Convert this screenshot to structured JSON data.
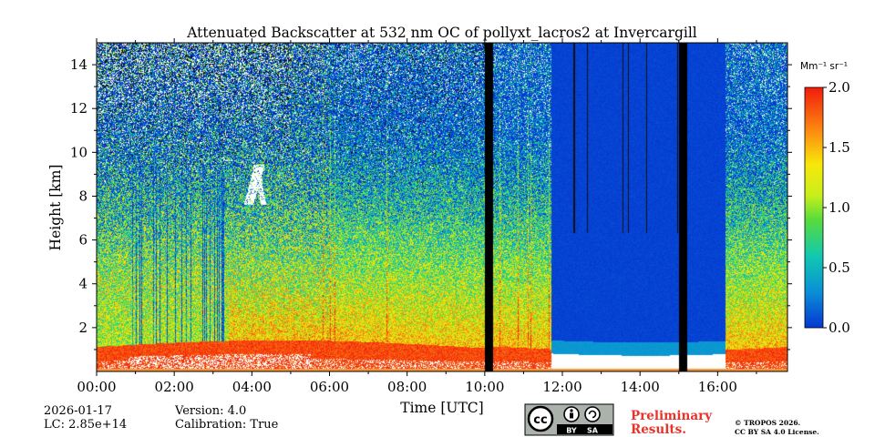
{
  "chart_data": {
    "type": "heatmap",
    "title": "Attenuated Backscatter at 532 nm OC of pollyxt_lacros2 at Invercargill",
    "xlabel": "Time [UTC]",
    "ylabel": "Height [km]",
    "xlim": [
      0,
      17.8
    ],
    "ylim": [
      0,
      15
    ],
    "x_ticks": [
      "00:00",
      "02:00",
      "04:00",
      "06:00",
      "08:00",
      "10:00",
      "12:00",
      "14:00",
      "16:00"
    ],
    "y_ticks": [
      "2",
      "4",
      "6",
      "8",
      "10",
      "12",
      "14"
    ],
    "colorbar": {
      "unit_label": "Mm⁻¹ sr⁻¹",
      "range": [
        0,
        2
      ],
      "ticks": [
        "0.0",
        "0.5",
        "1.0",
        "1.5",
        "2.0"
      ]
    },
    "data_gaps_hours": [
      [
        10.0,
        10.2
      ],
      [
        15.0,
        15.2
      ]
    ],
    "cloud_screened_hours": [
      11.7,
      16.2
    ],
    "cloud_patch": {
      "hours": [
        3.7,
        4.4
      ],
      "height_km": [
        7.6,
        9.4
      ]
    }
  },
  "footer": {
    "date": "2026-01-17",
    "lc": "LC: 2.85e+14",
    "version": "Version: 4.0",
    "calibration": "Calibration: True",
    "cc_badge": "cc",
    "by_label": "BY",
    "sa_label": "SA",
    "preliminary_line1": "Preliminary",
    "preliminary_line2": "Results.",
    "copyright_line1": "© TROPOS 2026.",
    "copyright_line2": "CC BY SA 4.0 License.",
    "preliminary_color": "#e8332b"
  }
}
